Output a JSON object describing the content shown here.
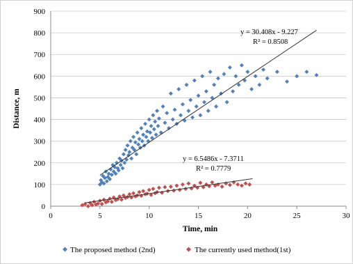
{
  "chart_data": {
    "type": "scatter",
    "xlabel": "Time, min",
    "ylabel": "Distance, m",
    "xlim": [
      0,
      30
    ],
    "ylim": [
      0,
      900
    ],
    "x_ticks": [
      0,
      5,
      10,
      15,
      20,
      25,
      30
    ],
    "y_ticks": [
      0,
      100,
      200,
      300,
      400,
      500,
      600,
      700,
      800,
      900
    ],
    "grid": "horizontal",
    "legend_position": "bottom",
    "series": [
      {
        "name": "The proposed method (2nd)",
        "color": "#4f81bd",
        "marker": "diamond",
        "trendline": {
          "slope": 30.408,
          "intercept": -9.227,
          "x_range": [
            5,
            27
          ]
        },
        "equation": "y = 30.408x - 9.227",
        "r_squared": "R² = 0.8508",
        "points": [
          [
            5.0,
            100
          ],
          [
            5.1,
            120
          ],
          [
            5.2,
            110
          ],
          [
            5.3,
            140
          ],
          [
            5.4,
            105
          ],
          [
            5.5,
            130
          ],
          [
            5.6,
            160
          ],
          [
            5.7,
            115
          ],
          [
            5.8,
            135
          ],
          [
            5.9,
            150
          ],
          [
            6.0,
            125
          ],
          [
            6.1,
            170
          ],
          [
            6.2,
            145
          ],
          [
            6.3,
            190
          ],
          [
            6.4,
            160
          ],
          [
            6.5,
            180
          ],
          [
            6.6,
            150
          ],
          [
            6.7,
            200
          ],
          [
            6.8,
            175
          ],
          [
            6.9,
            165
          ],
          [
            7.0,
            220
          ],
          [
            7.1,
            190
          ],
          [
            7.2,
            210
          ],
          [
            7.3,
            175
          ],
          [
            7.4,
            240
          ],
          [
            7.5,
            200
          ],
          [
            7.6,
            260
          ],
          [
            7.7,
            215
          ],
          [
            7.8,
            280
          ],
          [
            7.9,
            235
          ],
          [
            8.0,
            250
          ],
          [
            8.1,
            300
          ],
          [
            8.2,
            220
          ],
          [
            8.3,
            270
          ],
          [
            8.4,
            320
          ],
          [
            8.5,
            260
          ],
          [
            8.6,
            295
          ],
          [
            8.7,
            240
          ],
          [
            8.8,
            340
          ],
          [
            8.9,
            285
          ],
          [
            9.0,
            310
          ],
          [
            9.1,
            270
          ],
          [
            9.2,
            360
          ],
          [
            9.3,
            300
          ],
          [
            9.4,
            330
          ],
          [
            9.5,
            280
          ],
          [
            9.6,
            380
          ],
          [
            9.7,
            320
          ],
          [
            9.8,
            345
          ],
          [
            9.9,
            300
          ],
          [
            10.0,
            400
          ],
          [
            10.1,
            340
          ],
          [
            10.2,
            370
          ],
          [
            10.3,
            315
          ],
          [
            10.4,
            420
          ],
          [
            10.5,
            355
          ],
          [
            10.6,
            390
          ],
          [
            10.7,
            330
          ],
          [
            10.8,
            440
          ],
          [
            10.9,
            370
          ],
          [
            11.0,
            405
          ],
          [
            11.2,
            340
          ],
          [
            11.4,
            460
          ],
          [
            11.6,
            385
          ],
          [
            11.8,
            430
          ],
          [
            12.0,
            360
          ],
          [
            12.2,
            520
          ],
          [
            12.4,
            400
          ],
          [
            12.6,
            445
          ],
          [
            12.8,
            380
          ],
          [
            13.0,
            540
          ],
          [
            13.2,
            420
          ],
          [
            13.4,
            470
          ],
          [
            13.6,
            395
          ],
          [
            13.8,
            560
          ],
          [
            14.0,
            440
          ],
          [
            14.2,
            490
          ],
          [
            14.4,
            410
          ],
          [
            14.6,
            580
          ],
          [
            14.8,
            460
          ],
          [
            15.0,
            510
          ],
          [
            15.2,
            420
          ],
          [
            15.4,
            600
          ],
          [
            15.6,
            480
          ],
          [
            15.8,
            530
          ],
          [
            16.0,
            440
          ],
          [
            16.2,
            620
          ],
          [
            16.4,
            500
          ],
          [
            16.6,
            560
          ],
          [
            16.8,
            460
          ],
          [
            17.0,
            590
          ],
          [
            17.3,
            520
          ],
          [
            17.6,
            610
          ],
          [
            17.9,
            480
          ],
          [
            18.2,
            640
          ],
          [
            18.5,
            530
          ],
          [
            18.8,
            600
          ],
          [
            19.1,
            560
          ],
          [
            19.4,
            650
          ],
          [
            19.7,
            580
          ],
          [
            20.0,
            620
          ],
          [
            20.4,
            540
          ],
          [
            20.8,
            600
          ],
          [
            21.2,
            560
          ],
          [
            21.6,
            630
          ],
          [
            22.0,
            590
          ],
          [
            23.0,
            620
          ],
          [
            24.0,
            575
          ],
          [
            25.0,
            600
          ],
          [
            26.0,
            620
          ],
          [
            27.0,
            605
          ]
        ]
      },
      {
        "name": "The currently used method(1st)",
        "color": "#c0504d",
        "marker": "diamond",
        "trendline": {
          "slope": 6.5486,
          "intercept": -7.3711,
          "x_range": [
            3.5,
            20.5
          ]
        },
        "equation": "y = 6.5486x - 7.3711",
        "r_squared": "R² = 0.7779",
        "points": [
          [
            3.2,
            5
          ],
          [
            3.5,
            10
          ],
          [
            3.8,
            0
          ],
          [
            4.0,
            15
          ],
          [
            4.2,
            5
          ],
          [
            4.4,
            20
          ],
          [
            4.6,
            8
          ],
          [
            4.8,
            12
          ],
          [
            5.0,
            25
          ],
          [
            5.2,
            10
          ],
          [
            5.4,
            30
          ],
          [
            5.6,
            18
          ],
          [
            5.8,
            22
          ],
          [
            6.0,
            35
          ],
          [
            6.2,
            20
          ],
          [
            6.4,
            40
          ],
          [
            6.6,
            28
          ],
          [
            6.8,
            32
          ],
          [
            7.0,
            45
          ],
          [
            7.2,
            30
          ],
          [
            7.4,
            50
          ],
          [
            7.6,
            38
          ],
          [
            7.8,
            42
          ],
          [
            8.0,
            55
          ],
          [
            8.2,
            40
          ],
          [
            8.4,
            60
          ],
          [
            8.6,
            45
          ],
          [
            8.8,
            50
          ],
          [
            9.0,
            65
          ],
          [
            9.2,
            48
          ],
          [
            9.4,
            70
          ],
          [
            9.6,
            55
          ],
          [
            9.8,
            58
          ],
          [
            10.0,
            75
          ],
          [
            10.2,
            52
          ],
          [
            10.4,
            80
          ],
          [
            10.6,
            60
          ],
          [
            10.8,
            65
          ],
          [
            11.0,
            85
          ],
          [
            11.3,
            62
          ],
          [
            11.6,
            88
          ],
          [
            11.9,
            70
          ],
          [
            12.2,
            90
          ],
          [
            12.5,
            72
          ],
          [
            12.8,
            95
          ],
          [
            13.1,
            75
          ],
          [
            13.4,
            100
          ],
          [
            13.7,
            80
          ],
          [
            14.0,
            105
          ],
          [
            14.3,
            82
          ],
          [
            14.6,
            95
          ],
          [
            14.9,
            85
          ],
          [
            15.2,
            108
          ],
          [
            15.5,
            88
          ],
          [
            15.8,
            100
          ],
          [
            16.1,
            92
          ],
          [
            16.4,
            110
          ],
          [
            16.7,
            95
          ],
          [
            17.0,
            100
          ],
          [
            17.4,
            90
          ],
          [
            17.8,
            105
          ],
          [
            18.2,
            98
          ],
          [
            18.6,
            110
          ],
          [
            19.0,
            100
          ],
          [
            19.4,
            95
          ],
          [
            19.8,
            105
          ],
          [
            20.2,
            100
          ]
        ]
      }
    ]
  }
}
